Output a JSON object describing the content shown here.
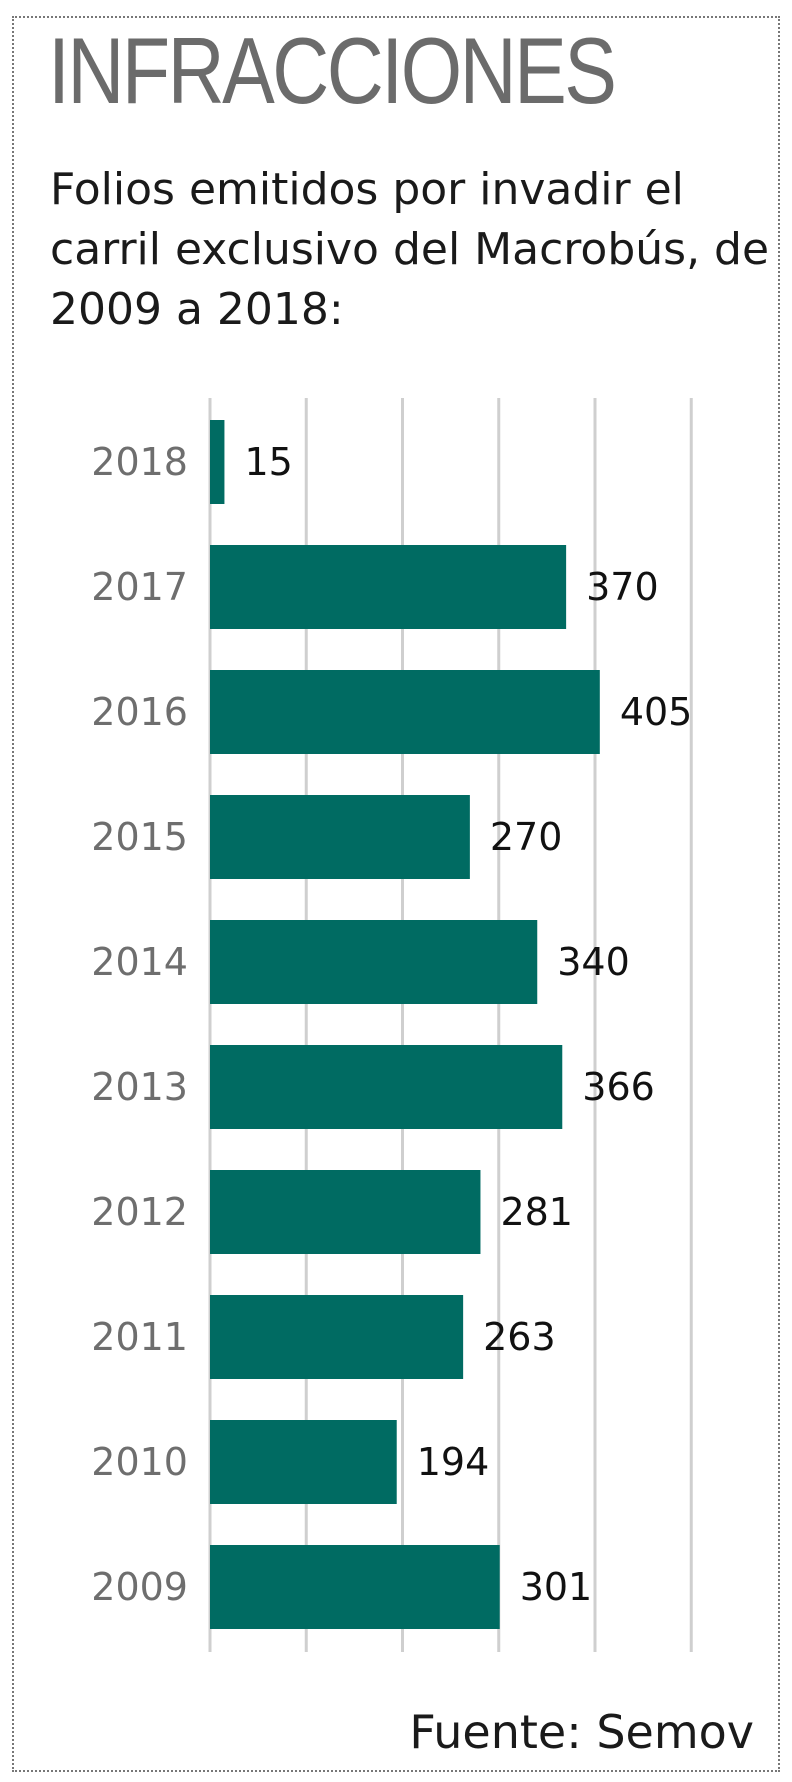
{
  "title": "INFRACCIONES",
  "subtitle": "Folios emitidos por invadir el carril exclusivo del Macrobús, de 2009 a 2018:",
  "source": "Fuente: Semov",
  "colors": {
    "bar": "#006b62",
    "grid": "#cfcfcf",
    "frame": "#777777"
  },
  "chart_data": {
    "type": "bar",
    "orientation": "horizontal",
    "categories": [
      "2018",
      "2017",
      "2016",
      "2015",
      "2014",
      "2013",
      "2012",
      "2011",
      "2010",
      "2009"
    ],
    "values": [
      15,
      370,
      405,
      270,
      340,
      366,
      281,
      263,
      194,
      301
    ],
    "xlim": [
      0,
      500
    ],
    "grid": true,
    "xlabel": "",
    "ylabel": ""
  }
}
